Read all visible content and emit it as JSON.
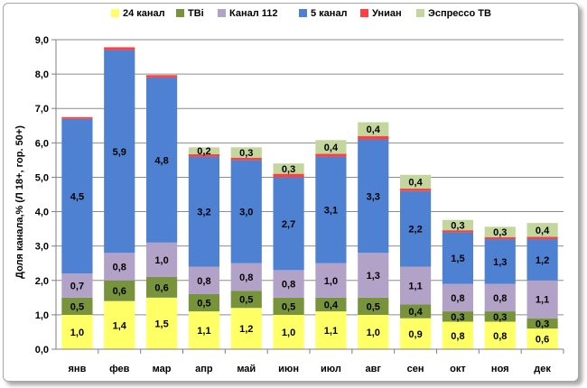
{
  "chart_data": {
    "type": "bar",
    "stacked": true,
    "ylabel": "Доля канала,% (Л 18+, гор. 50+)",
    "ylim": [
      0,
      9
    ],
    "ytick_step": 1,
    "ytick_labels": [
      "0,0",
      "1,0",
      "2,0",
      "3,0",
      "4,0",
      "5,0",
      "6,0",
      "7,0",
      "8,0",
      "9,0"
    ],
    "legend_position": "top",
    "categories": [
      "янв",
      "фев",
      "мар",
      "апр",
      "май",
      "июн",
      "июл",
      "авг",
      "сен",
      "окт",
      "ноя",
      "дек"
    ],
    "series": [
      {
        "name": "24 канал",
        "color": "#ffff66",
        "values": [
          1.0,
          1.4,
          1.5,
          1.1,
          1.2,
          1.0,
          1.1,
          1.0,
          0.9,
          0.8,
          0.8,
          0.6
        ],
        "labels": [
          "1,0",
          "1,4",
          "1,5",
          "1,1",
          "1,2",
          "1,0",
          "1,1",
          "1,0",
          "0,9",
          "0,8",
          "0,8",
          "0,6"
        ]
      },
      {
        "name": "ТВі",
        "color": "#77933c",
        "values": [
          0.5,
          0.6,
          0.6,
          0.5,
          0.5,
          0.5,
          0.4,
          0.5,
          0.4,
          0.3,
          0.3,
          0.3
        ],
        "labels": [
          "0,5",
          "0,6",
          "0,6",
          "0,5",
          "0,5",
          "0,5",
          "0,4",
          "0,5",
          "0,4",
          "0,3",
          "0,3",
          "0,3"
        ]
      },
      {
        "name": "Канал 112",
        "color": "#b3a2c7",
        "values": [
          0.7,
          0.8,
          1.0,
          0.8,
          0.8,
          0.8,
          1.0,
          1.3,
          1.1,
          0.8,
          0.8,
          1.1
        ],
        "labels": [
          "0,7",
          "0,8",
          "1,0",
          "0,8",
          "0,8",
          "0,8",
          "1,0",
          "1,3",
          "1,1",
          "0,8",
          "0,8",
          "1,1"
        ]
      },
      {
        "name": "5 канал",
        "color": "#4f81d3",
        "values": [
          4.5,
          5.9,
          4.8,
          3.2,
          3.0,
          2.7,
          3.1,
          3.3,
          2.2,
          1.5,
          1.3,
          1.2
        ],
        "labels": [
          "4,5",
          "5,9",
          "4,8",
          "3,2",
          "3,0",
          "2,7",
          "3,1",
          "3,3",
          "2,2",
          "1,5",
          "1,3",
          "1,2"
        ]
      },
      {
        "name": "Униан",
        "color": "#ff4040",
        "values": [
          0.05,
          0.08,
          0.07,
          0.07,
          0.07,
          0.1,
          0.08,
          0.1,
          0.07,
          0.06,
          0.06,
          0.07
        ],
        "labels": []
      },
      {
        "name": "Эспрессо ТВ",
        "color": "#c3d69b",
        "values": [
          0.0,
          0.0,
          0.0,
          0.2,
          0.3,
          0.3,
          0.4,
          0.4,
          0.4,
          0.3,
          0.3,
          0.4
        ],
        "labels": [
          "",
          "",
          "",
          "0,2",
          "0,3",
          "0,3",
          "0,4",
          "0,4",
          "0,4",
          "0,3",
          "0,3",
          "0,4"
        ]
      }
    ]
  }
}
